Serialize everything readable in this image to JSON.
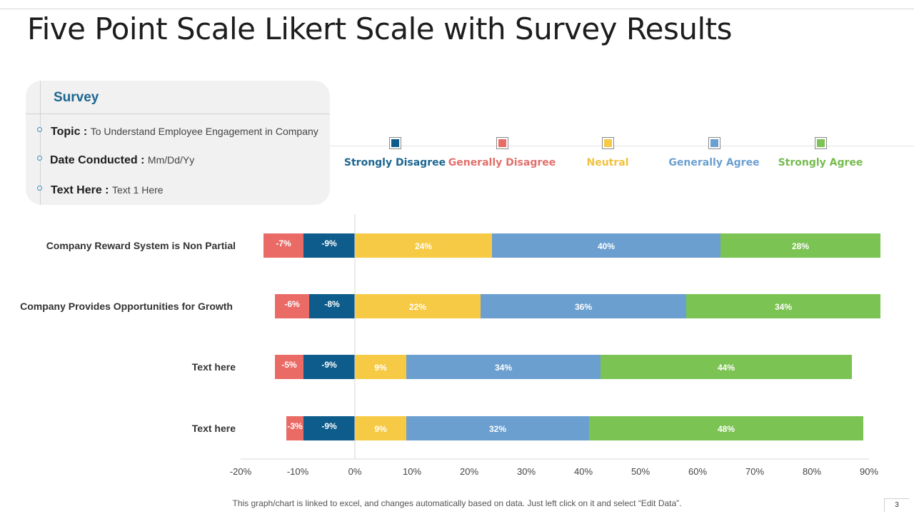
{
  "page": {
    "title": "Five Point Scale Likert Scale with Survey Results",
    "footer_note": "This graph/chart is linked to excel, and changes automatically based on data. Just left click on it and select “Edit Data”.",
    "page_number": "3"
  },
  "survey": {
    "heading": "Survey",
    "rows": [
      {
        "label": "Topic :",
        "value": "To Understand Employee Engagement in Company"
      },
      {
        "label": "Date Conducted :",
        "value": "Mm/Dd/Yy"
      },
      {
        "label": "Text Here :",
        "value": "Text 1 Here"
      }
    ]
  },
  "chart_data": {
    "type": "bar",
    "orientation": "horizontal",
    "stacked": "diverging",
    "categories": [
      "Company Reward System is Non Partial",
      "Company Provides Opportunities for Growth",
      "Text here",
      "Text here"
    ],
    "series": [
      {
        "name": "Strongly Disagree",
        "color": "#0d5c8c",
        "label_color": "#ffffff",
        "values": [
          -9,
          -8,
          -9,
          -9
        ],
        "labels": [
          "-9%",
          "-8%",
          "-9%",
          "-9%"
        ]
      },
      {
        "name": "Generally Disagree",
        "color": "#ea6b66",
        "label_color": "#ffffff",
        "values": [
          -7,
          -6,
          -5,
          -3
        ],
        "labels": [
          "-7%",
          "-6%",
          "-5%",
          "-3%"
        ]
      },
      {
        "name": "Neutral",
        "color": "#f7ca45",
        "label_color": "#ffffff",
        "values": [
          24,
          22,
          9,
          9
        ],
        "labels": [
          "24%",
          "22%",
          "9%",
          "9%"
        ]
      },
      {
        "name": "Generally Agree",
        "color": "#6b9fd0",
        "label_color": "#ffffff",
        "values": [
          40,
          36,
          34,
          32
        ],
        "labels": [
          "40%",
          "36%",
          "34%",
          "32%"
        ]
      },
      {
        "name": "Strongly Agree",
        "color": "#7bc353",
        "label_color": "#ffffff",
        "values": [
          28,
          34,
          44,
          48
        ],
        "labels": [
          "28%",
          "34%",
          "44%",
          "48%"
        ]
      }
    ],
    "legend_text_colors": [
      "#1b6690",
      "#e0706b",
      "#f2c13e",
      "#6b9fd0",
      "#76bb4f"
    ],
    "xlim": [
      -20,
      90
    ],
    "x_ticks": [
      "-20%",
      "-10%",
      "0%",
      "10%",
      "20%",
      "30%",
      "40%",
      "50%",
      "60%",
      "70%",
      "80%",
      "90%"
    ],
    "title": "",
    "xlabel": "",
    "ylabel": "",
    "legend_position": "top"
  }
}
